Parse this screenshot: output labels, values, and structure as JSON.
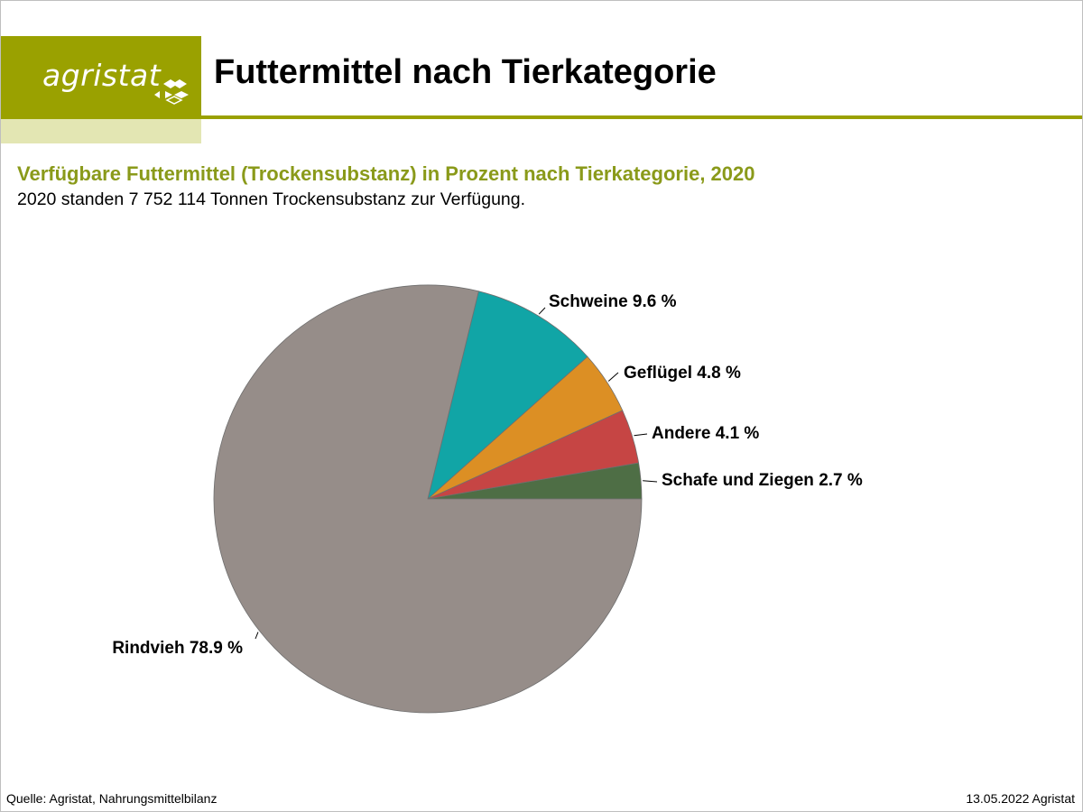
{
  "header": {
    "logo_text": "agristat",
    "title": "Futtermittel nach Tierkategorie",
    "brand_color": "#9aa100"
  },
  "chart_data": {
    "type": "pie",
    "title": "Verfügbare Futtermittel (Trockensubstanz) in Prozent nach Tierkategorie, 2020",
    "subtitle": "2020 standen 7 752 114 Tonnen Trockensubstanz zur Verfügung.",
    "slices": [
      {
        "name": "Schafe und Ziegen",
        "value": 2.7,
        "label": "Schafe und Ziegen 2.7 %",
        "color": "#4e6e45"
      },
      {
        "name": "Andere",
        "value": 4.1,
        "label": "Andere 4.1 %",
        "color": "#c64544"
      },
      {
        "name": "Geflügel",
        "value": 4.8,
        "label": "Geflügel 4.8 %",
        "color": "#dc8f24"
      },
      {
        "name": "Schweine",
        "value": 9.6,
        "label": "Schweine 9.6 %",
        "color": "#11a5a6"
      },
      {
        "name": "Rindvieh",
        "value": 78.9,
        "label": "Rindvieh 78.9 %",
        "color": "#968d89"
      }
    ],
    "start_angle": "3 o'clock",
    "direction": "counterclockwise"
  },
  "footer": {
    "source": "Quelle: Agristat, Nahrungsmittelbilanz",
    "date_credit": "13.05.2022 Agristat"
  }
}
